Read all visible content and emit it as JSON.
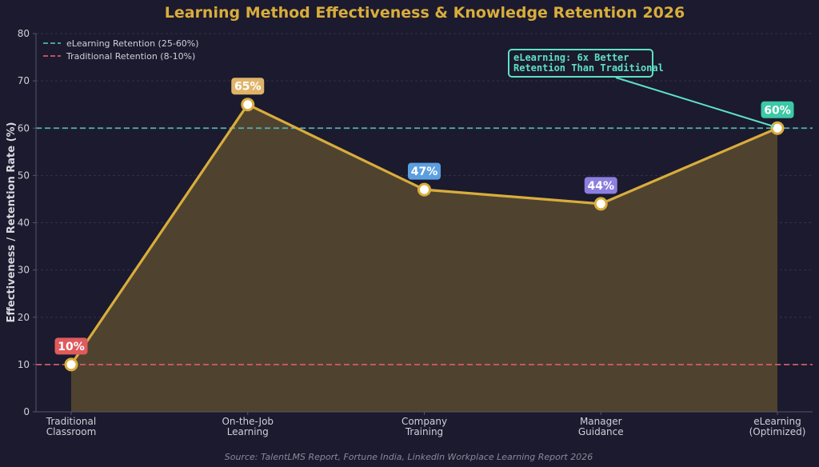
{
  "chart_data": {
    "type": "area",
    "title": "Learning Method Effectiveness & Knowledge Retention 2026",
    "ylabel": "Effectiveness / Retention Rate (%)",
    "xlabel": "",
    "ylim": [
      0,
      80
    ],
    "yticks": [
      0,
      10,
      20,
      30,
      40,
      50,
      60,
      70,
      80
    ],
    "categories": [
      [
        "Traditional",
        "Classroom"
      ],
      [
        "On-the-Job",
        "Learning"
      ],
      [
        "Company",
        "Training"
      ],
      [
        "Manager",
        "Guidance"
      ],
      [
        "eLearning",
        "(Optimized)"
      ]
    ],
    "values": [
      10,
      65,
      47,
      44,
      60
    ],
    "value_labels": [
      "10%",
      "65%",
      "47%",
      "44%",
      "60%"
    ],
    "label_colors": [
      "#e05a5e",
      "#e0b468",
      "#5b9fe0",
      "#8b7fe0",
      "#3cc9a6"
    ],
    "line_color": "#d9ad3c",
    "fill_color": "#524630",
    "reference_lines": [
      {
        "label": "eLearning Retention (25-60%)",
        "value": 60,
        "color": "#4fb3b0"
      },
      {
        "label": "Traditional Retention (8-10%)",
        "value": 10,
        "color": "#d45a63"
      }
    ],
    "legend_position": "top-left",
    "grid": true,
    "annotation": {
      "lines": [
        "eLearning: 6x Better",
        "Retention Than Traditional"
      ],
      "target_index": 4,
      "color": "#5ee0c4"
    },
    "source": "Source: TalentLMS Report, Fortune India, LinkedIn Workplace Learning Report 2026",
    "colors": {
      "background": "#1b1a2e",
      "title": "#d9ad3c",
      "grid": "#33324a",
      "axis": "#55546a"
    }
  }
}
